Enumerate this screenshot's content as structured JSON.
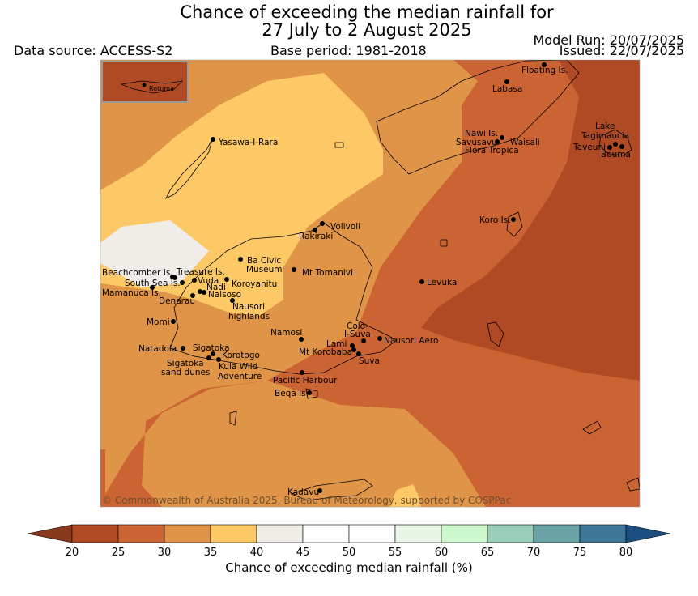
{
  "title_line1": "Chance of exceeding the median rainfall for",
  "title_line2": "27 July to 2 August 2025",
  "data_source": "Data source: ACCESS-S2",
  "base_period": "Base period: 1981-2018",
  "model_run": "Model Run: 20/07/2025",
  "issued": "Issued: 22/07/2025",
  "inset_label": "Rotuma",
  "copyright": "© Commonwealth of Australia 2025, Bureau of Meteorology, supported by COSPPac",
  "colorbar": {
    "label": "Chance of exceeding median rainfall (%)",
    "ticks": [
      "20",
      "25",
      "30",
      "35",
      "40",
      "45",
      "50",
      "55",
      "60",
      "65",
      "70",
      "75",
      "80"
    ],
    "colors": [
      "#8a3a1c",
      "#b04a25",
      "#cb6333",
      "#e09447",
      "#fdc966",
      "#f0ede8",
      "#ffffff",
      "#ffffff",
      "#e8f6e8",
      "#cdf7cc",
      "#99cfb9",
      "#69a3a5",
      "#3d7699",
      "#1a4f80"
    ]
  },
  "places": [
    {
      "name": "Floating Is."
    },
    {
      "name": "Labasa"
    },
    {
      "name": "Yasawa-I-Rara"
    },
    {
      "name": "Nawi Is."
    },
    {
      "name": "Savusavu"
    },
    {
      "name": "Waisali"
    },
    {
      "name": "Flora Tropica"
    },
    {
      "name": "Lake"
    },
    {
      "name": "Tagimaucia"
    },
    {
      "name": "Taveuni"
    },
    {
      "name": "Bouma"
    },
    {
      "name": "Koro Is."
    },
    {
      "name": "Volivoli"
    },
    {
      "name": "Rakiraki"
    },
    {
      "name": "Ba Civic"
    },
    {
      "name": "Museum"
    },
    {
      "name": "Mt Tomanivi"
    },
    {
      "name": "Beachcomber Is."
    },
    {
      "name": "Treasure Is."
    },
    {
      "name": "South Sea Is."
    },
    {
      "name": "Vuda"
    },
    {
      "name": "Koroyanitu"
    },
    {
      "name": "Nadi"
    },
    {
      "name": "Mamanuca Is."
    },
    {
      "name": "Naisoso"
    },
    {
      "name": "Denarau"
    },
    {
      "name": "Nausori"
    },
    {
      "name": "highlands"
    },
    {
      "name": "Levuka"
    },
    {
      "name": "Momi"
    },
    {
      "name": "Namosi"
    },
    {
      "name": "Colo-"
    },
    {
      "name": "I-Suva"
    },
    {
      "name": "Natadola"
    },
    {
      "name": "Sigatoka"
    },
    {
      "name": "Lami"
    },
    {
      "name": "Nausori Aero"
    },
    {
      "name": "Korotogo"
    },
    {
      "name": "Mt Korobaba"
    },
    {
      "name": "Suva"
    },
    {
      "name": "Sigatoka"
    },
    {
      "name": "sand dunes"
    },
    {
      "name": "Kula Wild"
    },
    {
      "name": "Adventure"
    },
    {
      "name": "Pacific Harbour"
    },
    {
      "name": "Beqa Is."
    },
    {
      "name": "Kadavu"
    }
  ]
}
